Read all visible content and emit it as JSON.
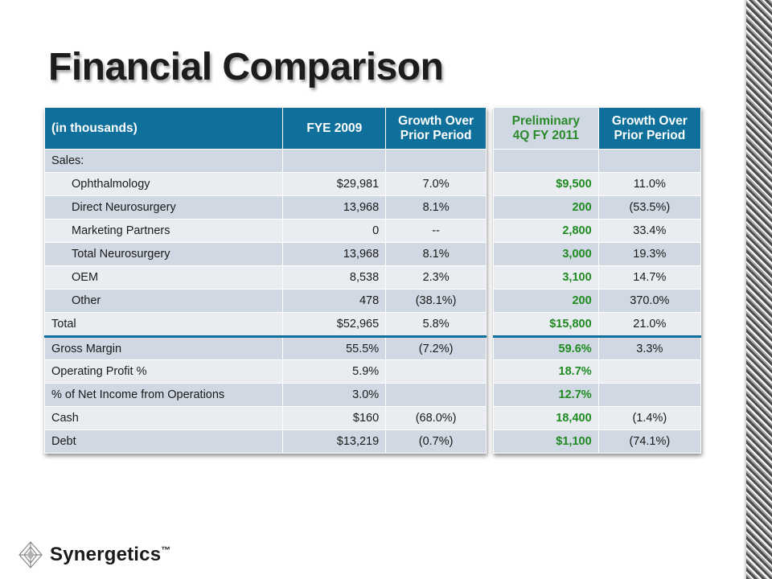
{
  "slide": {
    "title": "Financial Comparison",
    "brand": "Synergetics",
    "brand_tm": "™"
  },
  "left_table": {
    "headers": [
      "(in thousands)",
      "FYE 2009",
      "Growth Over Prior Period"
    ],
    "rows": [
      {
        "label": "Sales:",
        "value": "",
        "growth": ""
      },
      {
        "label": "Ophthalmology",
        "value": "$29,981",
        "growth": "7.0%"
      },
      {
        "label": "Direct Neurosurgery",
        "value": "13,968",
        "growth": "8.1%"
      },
      {
        "label": "Marketing Partners",
        "value": "0",
        "growth": "--"
      },
      {
        "label": "Total Neurosurgery",
        "value": "13,968",
        "growth": "8.1%"
      },
      {
        "label": "OEM",
        "value": "8,538",
        "growth": "2.3%"
      },
      {
        "label": "Other",
        "value": "478",
        "growth": "(38.1%)"
      },
      {
        "label": "Total",
        "value": "$52,965",
        "growth": "5.8%"
      },
      {
        "label": "Gross Margin",
        "value": "55.5%",
        "growth": "(7.2%)"
      },
      {
        "label": "Operating Profit %",
        "value": "5.9%",
        "growth": ""
      },
      {
        "label": "% of Net Income from Operations",
        "value": "3.0%",
        "growth": ""
      },
      {
        "label": "Cash",
        "value": "$160",
        "growth": "(68.0%)"
      },
      {
        "label": "Debt",
        "value": "$13,219",
        "growth": "(0.7%)"
      }
    ]
  },
  "right_table": {
    "headers": [
      "Preliminary 4Q FY 2011",
      "Growth Over Prior Period"
    ],
    "rows": [
      {
        "value": "",
        "growth": ""
      },
      {
        "value": "$9,500",
        "growth": "11.0%"
      },
      {
        "value": "200",
        "growth": "(53.5%)"
      },
      {
        "value": "2,800",
        "growth": "33.4%"
      },
      {
        "value": "3,000",
        "growth": "19.3%"
      },
      {
        "value": "3,100",
        "growth": "14.7%"
      },
      {
        "value": "200",
        "growth": "370.0%"
      },
      {
        "value": "$15,800",
        "growth": "21.0%"
      },
      {
        "value": "59.6%",
        "growth": "3.3%"
      },
      {
        "value": "18.7%",
        "growth": ""
      },
      {
        "value": "12.7%",
        "growth": ""
      },
      {
        "value": "18,400",
        "growth": "(1.4%)"
      },
      {
        "value": "$1,100",
        "growth": "(74.1%)"
      }
    ]
  },
  "colors": {
    "header_blue": "#0f709b",
    "row_dark": "#d0d8e3",
    "row_light": "#e9edf2",
    "prelim_green": "#1f8a1f"
  }
}
